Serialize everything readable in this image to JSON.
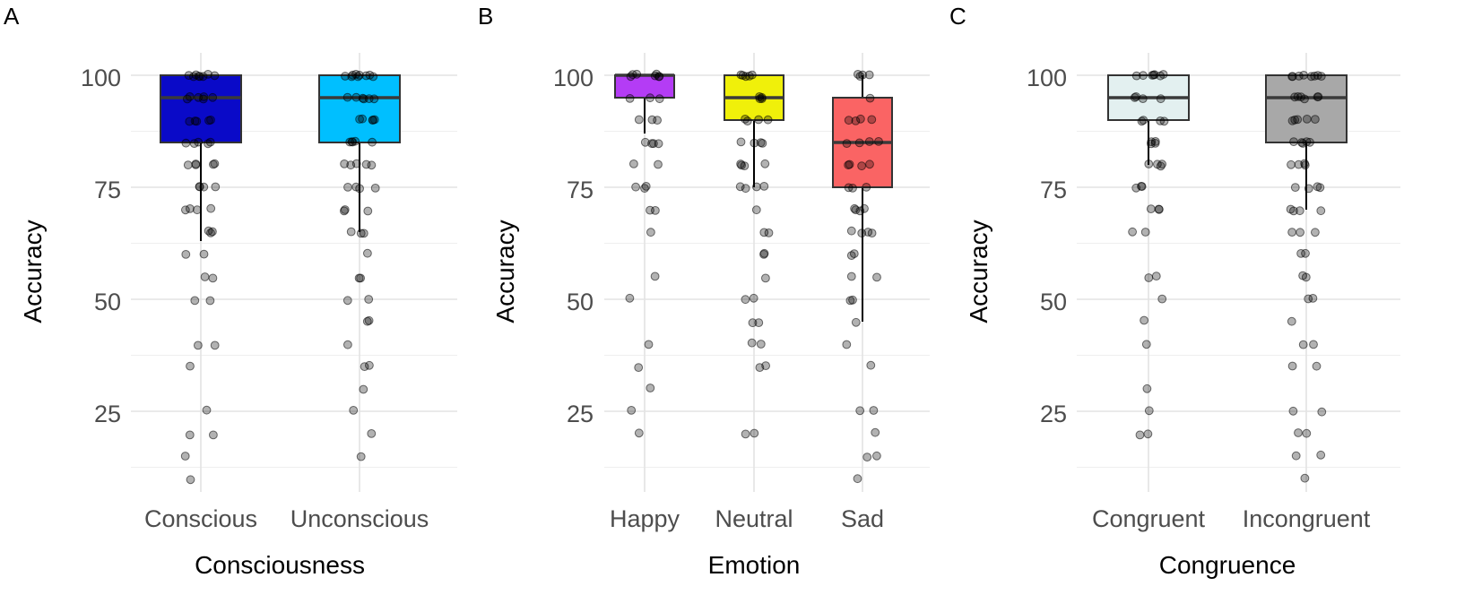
{
  "figure": {
    "panels": [
      "A",
      "B",
      "C"
    ]
  },
  "chart_data": [
    {
      "type": "box",
      "panel": "A",
      "title": "",
      "xlabel": "Consciousness",
      "ylabel": "Accuracy",
      "ylim": [
        7,
        105
      ],
      "yticks": [
        25,
        50,
        75,
        100
      ],
      "grid": true,
      "categories": [
        "Conscious",
        "Unconscious"
      ],
      "colors": [
        "#0a0ac8",
        "#00bfff"
      ],
      "boxes": [
        {
          "category": "Conscious",
          "q1": 85,
          "median": 95,
          "q3": 100,
          "whisker_low": 63,
          "whisker_high": 100
        },
        {
          "category": "Unconscious",
          "q1": 85,
          "median": 95,
          "q3": 100,
          "whisker_low": 65,
          "whisker_high": 100
        }
      ],
      "points": [
        {
          "values": [
            100,
            100,
            100,
            100,
            100,
            100,
            100,
            100,
            95,
            95,
            95,
            95,
            95,
            95,
            90,
            90,
            90,
            90,
            90,
            85,
            85,
            85,
            85,
            85,
            80,
            80,
            80,
            80,
            80,
            75,
            75,
            75,
            75,
            70,
            70,
            70,
            70,
            65,
            65,
            65,
            60,
            60,
            55,
            55,
            50,
            50,
            40,
            40,
            35,
            25,
            20,
            20,
            15,
            10
          ]
        },
        {
          "values": [
            100,
            100,
            100,
            100,
            100,
            100,
            100,
            100,
            100,
            95,
            95,
            95,
            95,
            95,
            95,
            90,
            90,
            90,
            90,
            90,
            85,
            85,
            85,
            85,
            85,
            80,
            80,
            80,
            80,
            80,
            75,
            75,
            75,
            75,
            70,
            70,
            70,
            65,
            65,
            65,
            60,
            55,
            55,
            50,
            50,
            45,
            45,
            40,
            35,
            35,
            30,
            25,
            20,
            15
          ]
        }
      ]
    },
    {
      "type": "box",
      "panel": "B",
      "title": "",
      "xlabel": "Emotion",
      "ylabel": "Accuracy",
      "ylim": [
        7,
        105
      ],
      "yticks": [
        25,
        50,
        75,
        100
      ],
      "grid": true,
      "categories": [
        "Happy",
        "Neutral",
        "Sad"
      ],
      "colors": [
        "#b43cf5",
        "#f0f00a",
        "#fa6464"
      ],
      "boxes": [
        {
          "category": "Happy",
          "q1": 95,
          "median": 100,
          "q3": 100,
          "whisker_low": 87,
          "whisker_high": 100
        },
        {
          "category": "Neutral",
          "q1": 90,
          "median": 95,
          "q3": 100,
          "whisker_low": 75,
          "whisker_high": 100
        },
        {
          "category": "Sad",
          "q1": 75,
          "median": 85,
          "q3": 95,
          "whisker_low": 45,
          "whisker_high": 100
        }
      ],
      "points": [
        {
          "values": [
            100,
            100,
            100,
            100,
            100,
            100,
            100,
            95,
            95,
            95,
            90,
            90,
            90,
            85,
            85,
            85,
            85,
            80,
            80,
            75,
            75,
            75,
            70,
            70,
            65,
            55,
            50,
            40,
            35,
            30,
            25,
            20
          ]
        },
        {
          "values": [
            100,
            100,
            100,
            100,
            100,
            95,
            95,
            95,
            95,
            90,
            90,
            90,
            90,
            85,
            85,
            85,
            85,
            80,
            80,
            80,
            80,
            75,
            75,
            75,
            75,
            70,
            65,
            65,
            60,
            60,
            55,
            50,
            50,
            45,
            45,
            40,
            40,
            35,
            35,
            20,
            20
          ]
        },
        {
          "values": [
            100,
            100,
            100,
            100,
            95,
            90,
            90,
            90,
            90,
            85,
            85,
            85,
            85,
            80,
            80,
            80,
            80,
            75,
            75,
            75,
            70,
            70,
            70,
            70,
            65,
            65,
            65,
            65,
            60,
            60,
            55,
            55,
            50,
            50,
            45,
            40,
            35,
            25,
            25,
            20,
            15,
            15,
            10
          ]
        }
      ]
    },
    {
      "type": "box",
      "panel": "C",
      "title": "",
      "xlabel": "Congruence",
      "ylabel": "Accuracy",
      "ylim": [
        7,
        105
      ],
      "yticks": [
        25,
        50,
        75,
        100
      ],
      "grid": true,
      "categories": [
        "Congruent",
        "Incongruent"
      ],
      "colors": [
        "#e3f0f0",
        "#a8a8a8"
      ],
      "boxes": [
        {
          "category": "Congruent",
          "q1": 90,
          "median": 95,
          "q3": 100,
          "whisker_low": 80,
          "whisker_high": 100
        },
        {
          "category": "Incongruent",
          "q1": 85,
          "median": 95,
          "q3": 100,
          "whisker_low": 70,
          "whisker_high": 100
        }
      ],
      "points": [
        {
          "values": [
            100,
            100,
            100,
            100,
            100,
            100,
            100,
            95,
            95,
            95,
            95,
            90,
            90,
            90,
            90,
            85,
            85,
            85,
            85,
            80,
            80,
            80,
            80,
            75,
            75,
            75,
            70,
            70,
            70,
            65,
            65,
            55,
            55,
            50,
            45,
            40,
            30,
            25,
            20,
            20
          ]
        },
        {
          "values": [
            100,
            100,
            100,
            100,
            100,
            100,
            100,
            100,
            95,
            95,
            95,
            95,
            95,
            95,
            90,
            90,
            90,
            90,
            90,
            85,
            85,
            85,
            85,
            85,
            80,
            80,
            80,
            80,
            75,
            75,
            75,
            75,
            70,
            70,
            70,
            70,
            65,
            65,
            65,
            60,
            60,
            55,
            55,
            50,
            50,
            45,
            40,
            40,
            35,
            35,
            25,
            25,
            20,
            20,
            15,
            15,
            10
          ]
        }
      ]
    }
  ]
}
